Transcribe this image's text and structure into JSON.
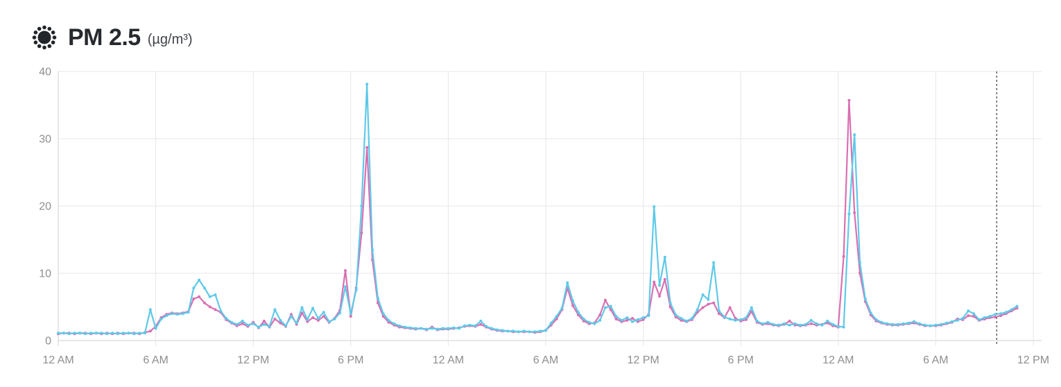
{
  "header": {
    "icon": "particulate-icon",
    "title": "PM 2.5",
    "unit": "(µg/m³)"
  },
  "colors": {
    "pink_series": "#D96FB2",
    "cyan_series": "#5EC9E8",
    "grid": "#e7e7e7",
    "axis": "#cfcfcf",
    "tick_label": "#8e8e8e",
    "current_time_line": "#3c3c3c",
    "title_text": "#26292d"
  },
  "chart_data": {
    "type": "line",
    "title": "PM 2.5",
    "ylabel": "µg/m³",
    "ylim": [
      0,
      40
    ],
    "y_ticks": [
      0,
      10,
      20,
      30,
      40
    ],
    "grid": true,
    "legend": "none",
    "x_unit": "hours-since-first-midnight",
    "x_step_hours": 0.33333,
    "x_tick_interval_hours": 6,
    "x_tick_labels": [
      "12 AM",
      "6 AM",
      "12 PM",
      "6 PM",
      "12 AM",
      "6 AM",
      "12 PM",
      "6 PM",
      "12 AM",
      "6 AM",
      "12 PM"
    ],
    "current_time_marker_hour": 57.75,
    "marker_style": "dashed-vertical-line",
    "series": [
      {
        "name": "pink",
        "color": "#D96FB2",
        "values": [
          1.0,
          1.1,
          1.1,
          1.0,
          1.1,
          1.1,
          1.0,
          1.1,
          1.0,
          1.1,
          1.0,
          1.1,
          1.0,
          1.1,
          1.1,
          1.0,
          1.2,
          1.4,
          2.1,
          3.4,
          3.9,
          4.1,
          4.0,
          4.1,
          4.3,
          6.2,
          6.5,
          5.6,
          5.0,
          4.6,
          4.2,
          3.1,
          2.6,
          2.2,
          2.5,
          2.1,
          2.7,
          1.9,
          2.9,
          2.0,
          3.2,
          2.6,
          2.1,
          3.9,
          2.4,
          4.1,
          2.8,
          3.4,
          3.0,
          3.6,
          2.7,
          3.3,
          4.5,
          10.4,
          3.6,
          7.8,
          16.0,
          28.7,
          12.0,
          5.6,
          3.6,
          2.7,
          2.3,
          2.0,
          1.9,
          1.8,
          1.7,
          1.8,
          1.6,
          2.0,
          1.6,
          1.7,
          1.7,
          1.8,
          1.9,
          2.1,
          2.2,
          2.1,
          2.4,
          2.0,
          1.7,
          1.5,
          1.4,
          1.4,
          1.3,
          1.3,
          1.3,
          1.3,
          1.2,
          1.3,
          1.5,
          2.3,
          3.2,
          4.6,
          7.8,
          5.2,
          3.8,
          2.9,
          2.5,
          2.6,
          3.8,
          6.0,
          4.6,
          3.2,
          2.8,
          3.0,
          3.3,
          2.8,
          3.1,
          3.9,
          8.7,
          6.6,
          9.1,
          5.0,
          3.5,
          3.0,
          2.8,
          3.1,
          4.2,
          4.9,
          5.4,
          5.6,
          4.0,
          3.4,
          4.9,
          3.3,
          2.9,
          3.1,
          4.3,
          2.7,
          2.4,
          2.5,
          2.3,
          2.2,
          2.4,
          2.9,
          2.3,
          2.2,
          2.3,
          2.5,
          2.3,
          2.4,
          2.6,
          2.2,
          2.0,
          12.5,
          35.7,
          19.0,
          10.0,
          5.8,
          3.8,
          2.9,
          2.6,
          2.4,
          2.3,
          2.3,
          2.4,
          2.5,
          2.6,
          2.4,
          2.2,
          2.2,
          2.2,
          2.3,
          2.5,
          2.7,
          3.2,
          3.1,
          3.7,
          3.6,
          3.0,
          3.2,
          3.4,
          3.5,
          3.7,
          4.0,
          4.4,
          4.8
        ]
      },
      {
        "name": "cyan",
        "color": "#5EC9E8",
        "values": [
          1.1,
          1.1,
          1.0,
          1.1,
          1.1,
          1.0,
          1.1,
          1.1,
          1.1,
          1.0,
          1.1,
          1.0,
          1.1,
          1.1,
          1.0,
          1.1,
          1.1,
          4.6,
          1.8,
          3.2,
          3.7,
          4.0,
          3.9,
          4.0,
          4.2,
          7.8,
          9.0,
          7.8,
          6.5,
          6.8,
          4.4,
          3.3,
          2.7,
          2.4,
          2.9,
          2.3,
          2.5,
          2.0,
          2.4,
          2.1,
          4.6,
          3.0,
          2.2,
          3.6,
          2.6,
          4.9,
          3.1,
          4.8,
          3.3,
          4.2,
          2.8,
          3.2,
          4.1,
          8.0,
          4.0,
          7.5,
          20.0,
          38.1,
          13.5,
          6.3,
          4.0,
          3.0,
          2.5,
          2.2,
          2.0,
          1.9,
          1.8,
          1.8,
          1.7,
          1.8,
          1.7,
          1.8,
          1.8,
          1.9,
          1.8,
          2.2,
          2.3,
          2.2,
          2.9,
          2.1,
          1.8,
          1.6,
          1.5,
          1.4,
          1.4,
          1.3,
          1.4,
          1.3,
          1.3,
          1.4,
          1.5,
          2.6,
          3.6,
          4.8,
          8.6,
          5.9,
          4.2,
          3.2,
          2.7,
          2.5,
          3.0,
          4.9,
          5.1,
          3.6,
          3.0,
          3.4,
          2.8,
          3.1,
          3.4,
          3.7,
          19.9,
          8.2,
          12.4,
          5.6,
          3.8,
          3.3,
          2.9,
          3.3,
          4.6,
          6.8,
          6.1,
          11.6,
          4.4,
          3.5,
          3.2,
          3.0,
          3.1,
          3.4,
          4.9,
          2.9,
          2.5,
          2.7,
          2.4,
          2.3,
          2.5,
          2.3,
          2.5,
          2.3,
          2.4,
          3.0,
          2.5,
          2.3,
          2.9,
          2.4,
          2.1,
          2.0,
          18.8,
          30.6,
          11.6,
          6.2,
          4.1,
          3.1,
          2.7,
          2.5,
          2.4,
          2.4,
          2.5,
          2.6,
          2.8,
          2.5,
          2.3,
          2.2,
          2.3,
          2.4,
          2.6,
          2.8,
          3.0,
          3.3,
          4.4,
          4.0,
          3.1,
          3.4,
          3.6,
          3.9,
          4.0,
          4.2,
          4.6,
          5.1
        ]
      }
    ]
  }
}
